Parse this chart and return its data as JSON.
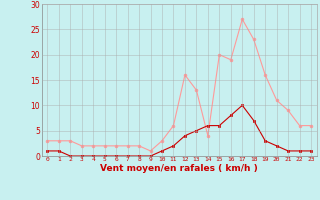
{
  "hours": [
    0,
    1,
    2,
    3,
    4,
    5,
    6,
    7,
    8,
    9,
    10,
    11,
    12,
    13,
    14,
    15,
    16,
    17,
    18,
    19,
    20,
    21,
    22,
    23
  ],
  "vent_moyen": [
    1,
    1,
    0,
    0,
    0,
    0,
    0,
    0,
    0,
    0,
    1,
    2,
    4,
    5,
    6,
    6,
    8,
    10,
    7,
    3,
    2,
    1,
    1,
    1
  ],
  "rafales": [
    3,
    3,
    3,
    2,
    2,
    2,
    2,
    2,
    2,
    1,
    3,
    6,
    16,
    13,
    4,
    20,
    19,
    27,
    23,
    16,
    11,
    9,
    6,
    6
  ],
  "xlabel": "Vent moyen/en rafales ( km/h )",
  "ylim": [
    0,
    30
  ],
  "xlim": [
    0,
    23
  ],
  "yticks": [
    0,
    5,
    10,
    15,
    20,
    25,
    30
  ],
  "xticks": [
    0,
    1,
    2,
    3,
    4,
    5,
    6,
    7,
    8,
    9,
    10,
    11,
    12,
    13,
    14,
    15,
    16,
    17,
    18,
    19,
    20,
    21,
    22,
    23
  ],
  "bg_color": "#c8f0f0",
  "grid_color": "#aaaaaa",
  "color_moyen": "#cc0000",
  "color_rafales": "#ff9999",
  "xlabel_color": "#cc0000",
  "tick_color": "#cc0000"
}
